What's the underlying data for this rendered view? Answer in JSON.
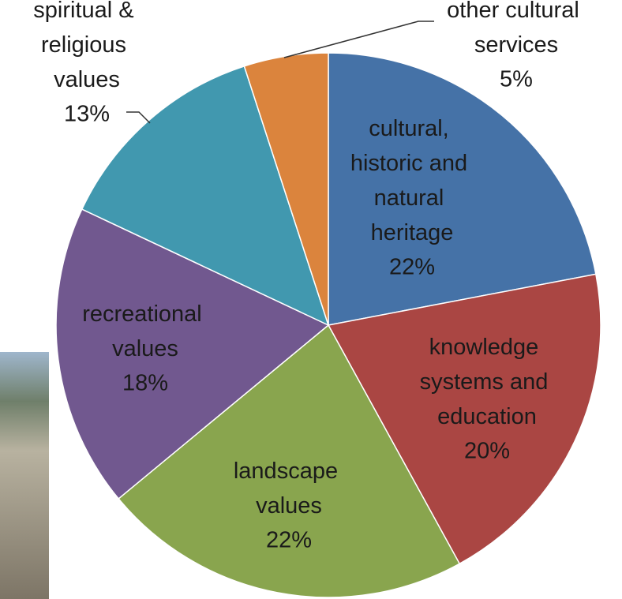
{
  "chart_data": {
    "type": "pie",
    "categories": [
      "cultural, historic and natural heritage",
      "knowledge systems and education",
      "landscape values",
      "recreational values",
      "spiritual & religious values",
      "other cultural services"
    ],
    "values": [
      22,
      20,
      22,
      18,
      13,
      5
    ],
    "value_labels": [
      "22%",
      "20%",
      "22%",
      "18%",
      "13%",
      "5%"
    ],
    "colors": [
      "#4572A7",
      "#AA4643",
      "#89A54E",
      "#71588F",
      "#4198AF",
      "#DB843D"
    ]
  }
}
